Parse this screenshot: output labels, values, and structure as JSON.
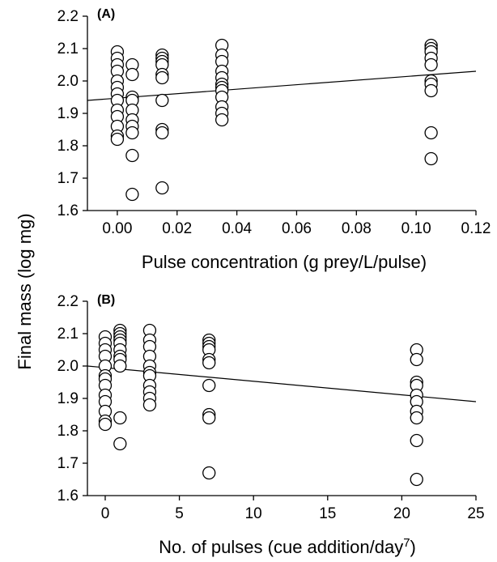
{
  "figure": {
    "ylabel": "Final mass (log mg)"
  },
  "chart_data": [
    {
      "type": "scatter",
      "panel_label": "(A)",
      "title": "",
      "xlabel": "Pulse concentration (g prey/L/pulse)",
      "ylabel": "Final mass (log mg)",
      "xlim": [
        -0.01,
        0.12
      ],
      "ylim": [
        1.6,
        2.2
      ],
      "xticks": [
        0.0,
        0.02,
        0.04,
        0.06,
        0.08,
        0.1,
        0.12
      ],
      "xtick_labels": [
        "0.00",
        "0.02",
        "0.04",
        "0.06",
        "0.08",
        "0.10",
        "0.12"
      ],
      "yticks": [
        1.6,
        1.7,
        1.8,
        1.9,
        2.0,
        2.1,
        2.2
      ],
      "ytick_labels": [
        "1.6",
        "1.7",
        "1.8",
        "1.9",
        "2.0",
        "2.1",
        "2.2"
      ],
      "grid": false,
      "marker": "open-circle",
      "points": [
        [
          0.0,
          2.09
        ],
        [
          0.0,
          2.07
        ],
        [
          0.0,
          2.05
        ],
        [
          0.0,
          2.03
        ],
        [
          0.0,
          2.0
        ],
        [
          0.0,
          1.98
        ],
        [
          0.0,
          1.96
        ],
        [
          0.0,
          1.94
        ],
        [
          0.0,
          1.91
        ],
        [
          0.0,
          1.89
        ],
        [
          0.0,
          1.86
        ],
        [
          0.0,
          1.83
        ],
        [
          0.0,
          1.82
        ],
        [
          0.005,
          2.05
        ],
        [
          0.005,
          2.02
        ],
        [
          0.005,
          1.95
        ],
        [
          0.005,
          1.94
        ],
        [
          0.005,
          1.91
        ],
        [
          0.005,
          1.88
        ],
        [
          0.005,
          1.86
        ],
        [
          0.005,
          1.84
        ],
        [
          0.005,
          1.77
        ],
        [
          0.005,
          1.65
        ],
        [
          0.015,
          2.08
        ],
        [
          0.015,
          2.07
        ],
        [
          0.015,
          2.06
        ],
        [
          0.015,
          2.05
        ],
        [
          0.015,
          2.02
        ],
        [
          0.015,
          2.01
        ],
        [
          0.015,
          1.94
        ],
        [
          0.015,
          1.85
        ],
        [
          0.015,
          1.84
        ],
        [
          0.015,
          1.67
        ],
        [
          0.035,
          2.11
        ],
        [
          0.035,
          2.08
        ],
        [
          0.035,
          2.06
        ],
        [
          0.035,
          2.03
        ],
        [
          0.035,
          2.01
        ],
        [
          0.035,
          1.99
        ],
        [
          0.035,
          1.98
        ],
        [
          0.035,
          1.97
        ],
        [
          0.035,
          1.95
        ],
        [
          0.035,
          1.92
        ],
        [
          0.035,
          1.9
        ],
        [
          0.035,
          1.88
        ],
        [
          0.105,
          2.11
        ],
        [
          0.105,
          2.1
        ],
        [
          0.105,
          2.09
        ],
        [
          0.105,
          2.07
        ],
        [
          0.105,
          2.05
        ],
        [
          0.105,
          2.0
        ],
        [
          0.105,
          1.99
        ],
        [
          0.105,
          1.97
        ],
        [
          0.105,
          1.84
        ],
        [
          0.105,
          1.76
        ]
      ],
      "trendline": {
        "x": [
          -0.01,
          0.12
        ],
        "y": [
          1.94,
          2.03
        ]
      }
    },
    {
      "type": "scatter",
      "panel_label": "(B)",
      "title": "",
      "xlabel": "No. of pulses (cue addition/day",
      "xlabel_superscript": "7",
      "xlabel_suffix": ")",
      "ylabel": "Final mass (log mg)",
      "xlim": [
        -1.2,
        25
      ],
      "ylim": [
        1.6,
        2.2
      ],
      "xticks": [
        0,
        5,
        10,
        15,
        20,
        25
      ],
      "xtick_labels": [
        "0",
        "5",
        "10",
        "15",
        "20",
        "25"
      ],
      "yticks": [
        1.6,
        1.7,
        1.8,
        1.9,
        2.0,
        2.1,
        2.2
      ],
      "ytick_labels": [
        "1.6",
        "1.7",
        "1.8",
        "1.9",
        "2.0",
        "2.1",
        "2.2"
      ],
      "grid": false,
      "marker": "open-circle",
      "points": [
        [
          0,
          2.09
        ],
        [
          0,
          2.07
        ],
        [
          0,
          2.05
        ],
        [
          0,
          2.03
        ],
        [
          0,
          2.0
        ],
        [
          0,
          1.97
        ],
        [
          0,
          1.96
        ],
        [
          0,
          1.94
        ],
        [
          0,
          1.91
        ],
        [
          0,
          1.89
        ],
        [
          0,
          1.86
        ],
        [
          0,
          1.83
        ],
        [
          0,
          1.82
        ],
        [
          1,
          2.11
        ],
        [
          1,
          2.1
        ],
        [
          1,
          2.09
        ],
        [
          1,
          2.08
        ],
        [
          1,
          2.07
        ],
        [
          1,
          2.05
        ],
        [
          1,
          2.03
        ],
        [
          1,
          2.02
        ],
        [
          1,
          2.0
        ],
        [
          1,
          1.84
        ],
        [
          1,
          1.76
        ],
        [
          3,
          2.11
        ],
        [
          3,
          2.08
        ],
        [
          3,
          2.06
        ],
        [
          3,
          2.03
        ],
        [
          3,
          2.0
        ],
        [
          3,
          1.98
        ],
        [
          3,
          1.97
        ],
        [
          3,
          1.94
        ],
        [
          3,
          1.92
        ],
        [
          3,
          1.9
        ],
        [
          3,
          1.88
        ],
        [
          7,
          2.08
        ],
        [
          7,
          2.07
        ],
        [
          7,
          2.06
        ],
        [
          7,
          2.05
        ],
        [
          7,
          2.02
        ],
        [
          7,
          2.01
        ],
        [
          7,
          1.94
        ],
        [
          7,
          1.85
        ],
        [
          7,
          1.84
        ],
        [
          7,
          1.67
        ],
        [
          21,
          2.05
        ],
        [
          21,
          2.02
        ],
        [
          21,
          1.95
        ],
        [
          21,
          1.94
        ],
        [
          21,
          1.91
        ],
        [
          21,
          1.89
        ],
        [
          21,
          1.86
        ],
        [
          21,
          1.84
        ],
        [
          21,
          1.77
        ],
        [
          21,
          1.65
        ]
      ],
      "trendline": {
        "x": [
          -1.2,
          25
        ],
        "y": [
          2.0,
          1.89
        ]
      }
    }
  ]
}
